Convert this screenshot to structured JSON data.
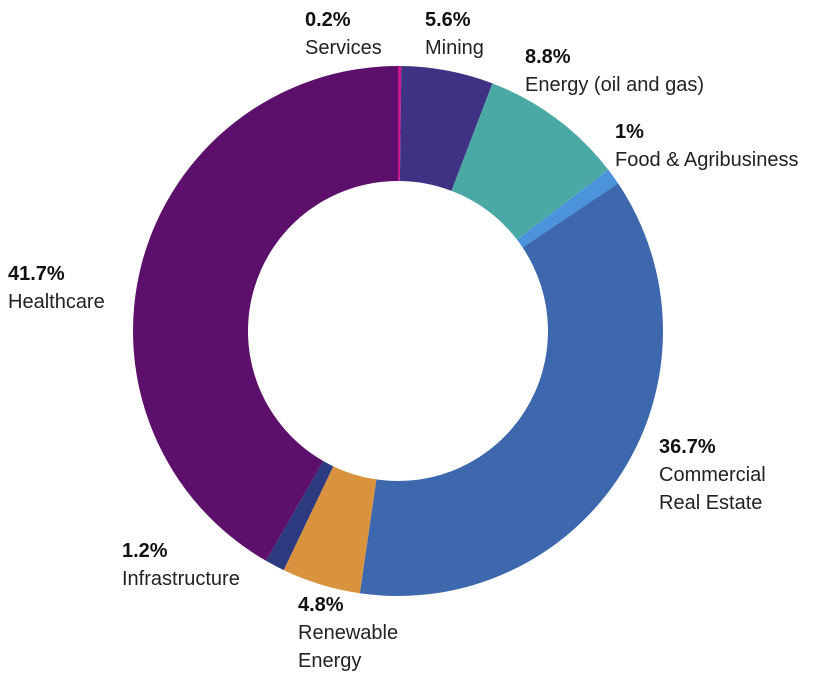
{
  "chart_data": {
    "type": "donut",
    "categories": [
      "Services",
      "Mining",
      "Energy (oil and gas)",
      "Food & Agribusiness",
      "Commercial Real Estate",
      "Renewable Energy",
      "Infrastructure",
      "Healthcare"
    ],
    "values": [
      0.2,
      5.6,
      8.8,
      1,
      36.7,
      4.8,
      1.2,
      41.7
    ],
    "value_labels": [
      "0.2%",
      "5.6%",
      "8.8%",
      "1%",
      "36.7%",
      "4.8%",
      "1.2%",
      "41.7%"
    ],
    "colors": [
      "#c8168c",
      "#3f3284",
      "#4aa8a5",
      "#4b93db",
      "#3d68ae",
      "#d9923d",
      "#2c3a80",
      "#5d106b"
    ]
  }
}
